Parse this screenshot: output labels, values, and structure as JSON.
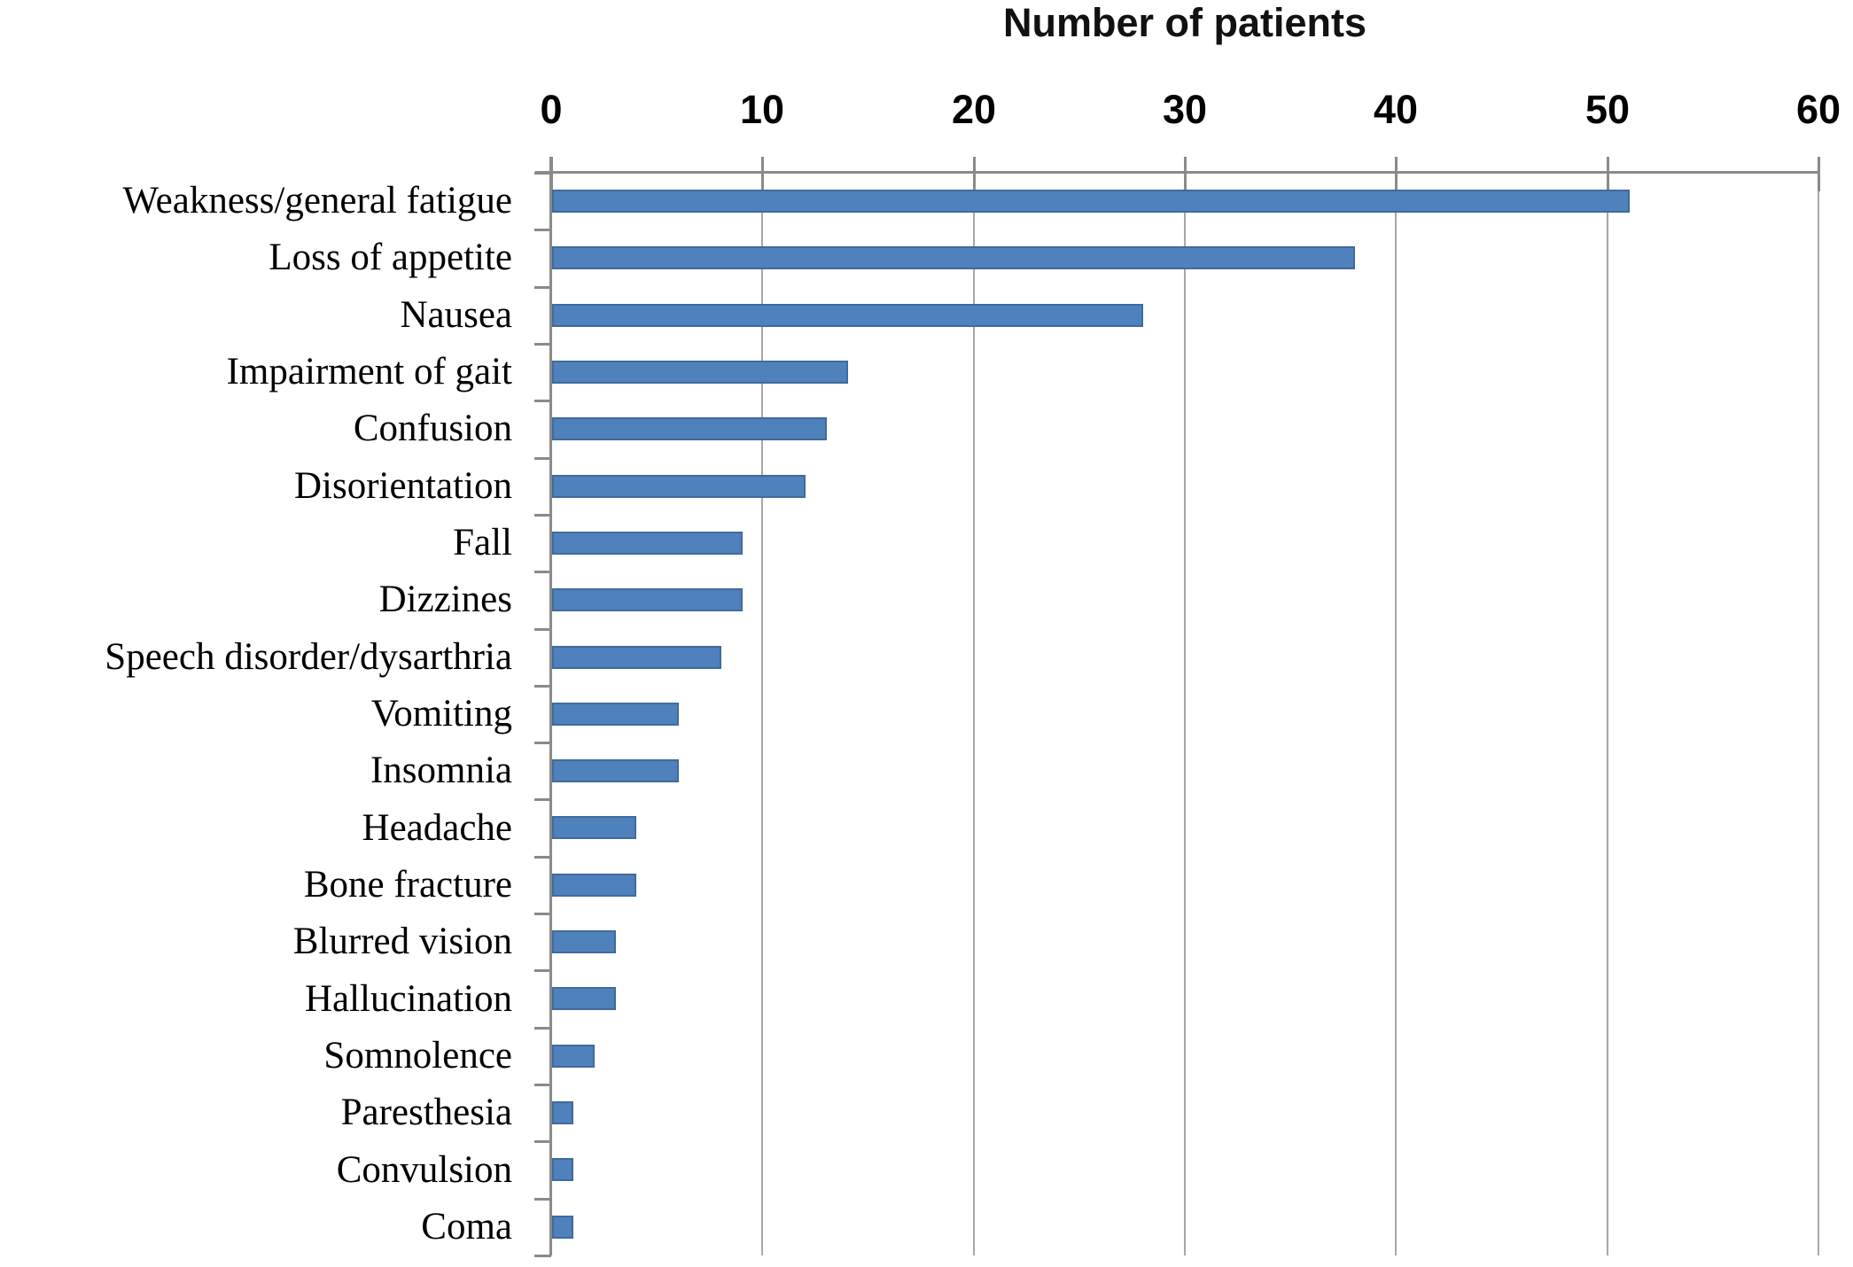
{
  "chart_data": {
    "type": "bar",
    "orientation": "horizontal",
    "title": "Number of patients",
    "xlabel": "Number of patients",
    "ylabel": "",
    "categories": [
      "Weakness/general fatigue",
      "Loss of appetite",
      "Nausea",
      "Impairment of gait",
      "Confusion",
      "Disorientation",
      "Fall",
      "Dizzines",
      "Speech disorder/dysarthria",
      "Vomiting",
      "Insomnia",
      "Headache",
      "Bone fracture",
      "Blurred vision",
      "Hallucination",
      "Somnolence",
      "Paresthesia",
      "Convulsion",
      "Coma"
    ],
    "values": [
      51,
      38,
      28,
      14,
      13,
      12,
      9,
      9,
      8,
      6,
      6,
      4,
      4,
      3,
      3,
      2,
      1,
      1,
      1
    ],
    "xlim": [
      0,
      60
    ],
    "xticks": [
      0,
      10,
      20,
      30,
      40,
      50,
      60
    ],
    "grid": true,
    "legend_position": "none",
    "colors": {
      "bar_fill": "#4F81BD",
      "bar_border": "#406A9C",
      "axis": "#8A8A8A",
      "gridline": "#A8A8A8",
      "text": "#000000"
    }
  }
}
